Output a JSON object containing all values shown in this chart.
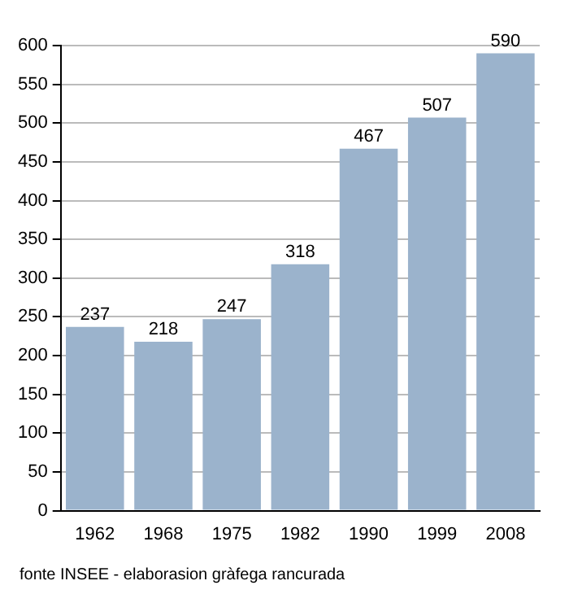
{
  "chart_data": {
    "type": "bar",
    "categories": [
      "1962",
      "1968",
      "1975",
      "1982",
      "1990",
      "1999",
      "2008"
    ],
    "values": [
      237,
      218,
      247,
      318,
      467,
      507,
      590
    ],
    "color": "#9bb3cc",
    "data_labels": true,
    "ylim": [
      0,
      600
    ],
    "yticks": [
      0,
      50,
      100,
      150,
      200,
      250,
      300,
      350,
      400,
      450,
      500,
      550,
      600
    ],
    "grid": "y",
    "annotations": [
      "fonte INSEE - elaborasion gràfega rancurada"
    ]
  }
}
